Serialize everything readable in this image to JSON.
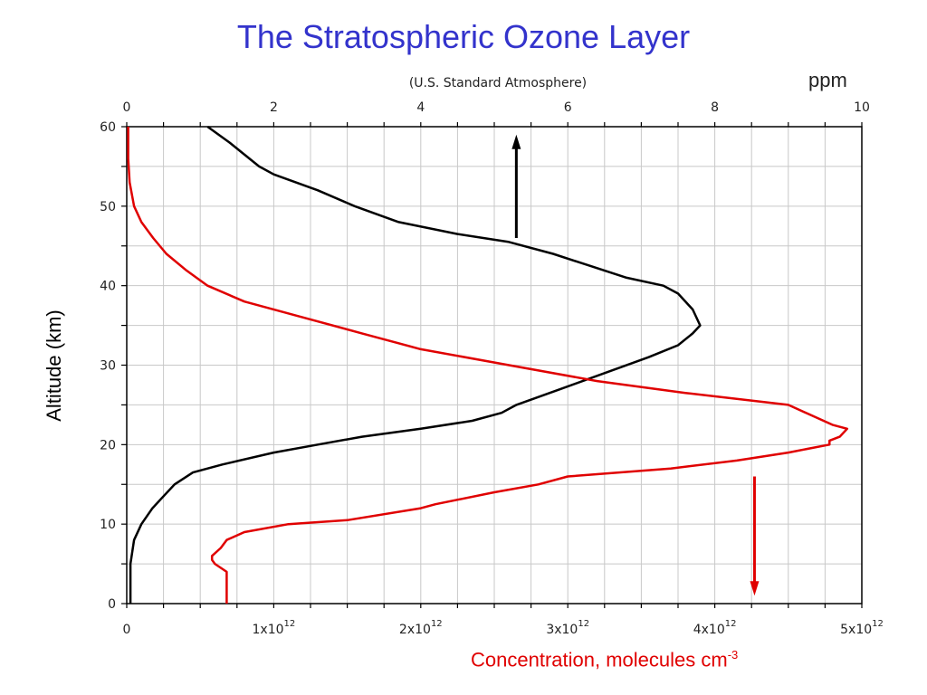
{
  "chart_data": {
    "type": "line",
    "title": "The Stratospheric Ozone Layer",
    "subtitle": "(U.S. Standard Atmosphere)",
    "top_axis_label": "ppm",
    "ylabel": "Altitude (km)",
    "xlabel_text": "Concentration, molecules cm",
    "xlabel_sup": "-3",
    "ylim": [
      0,
      60
    ],
    "y_ticks": [
      "0",
      "10",
      "20",
      "30",
      "40",
      "50",
      "60"
    ],
    "top_xlim": [
      0,
      10
    ],
    "top_ticks": [
      "0",
      "2",
      "4",
      "6",
      "8",
      "10"
    ],
    "bottom_xlim": [
      0,
      5000000000000.0
    ],
    "bottom_ticks": [
      {
        "base": "0",
        "exp": ""
      },
      {
        "base": "1x10",
        "exp": "12"
      },
      {
        "base": "2x10",
        "exp": "12"
      },
      {
        "base": "3x10",
        "exp": "12"
      },
      {
        "base": "4x10",
        "exp": "12"
      },
      {
        "base": "5x10",
        "exp": "12"
      }
    ],
    "grid": true,
    "series": [
      {
        "axis": "top",
        "color": "#000000",
        "points": [
          [
            0.05,
            0
          ],
          [
            0.05,
            5
          ],
          [
            0.1,
            8
          ],
          [
            0.2,
            10
          ],
          [
            0.35,
            12
          ],
          [
            0.45,
            13
          ],
          [
            0.65,
            15
          ],
          [
            0.9,
            16.5
          ],
          [
            1.3,
            17.5
          ],
          [
            2.0,
            19
          ],
          [
            2.6,
            20
          ],
          [
            3.2,
            21
          ],
          [
            4.0,
            22
          ],
          [
            4.7,
            23
          ],
          [
            5.1,
            24
          ],
          [
            5.3,
            25
          ],
          [
            5.9,
            27
          ],
          [
            6.5,
            29
          ],
          [
            7.1,
            31
          ],
          [
            7.5,
            32.5
          ],
          [
            7.7,
            34
          ],
          [
            7.8,
            35
          ],
          [
            7.7,
            37
          ],
          [
            7.5,
            39
          ],
          [
            7.3,
            40
          ],
          [
            6.8,
            41
          ],
          [
            6.3,
            42.5
          ],
          [
            5.8,
            44
          ],
          [
            5.2,
            45.5
          ],
          [
            4.5,
            46.5
          ],
          [
            3.7,
            48
          ],
          [
            3.1,
            50
          ],
          [
            2.6,
            52
          ],
          [
            2.0,
            54
          ],
          [
            1.8,
            55
          ],
          [
            1.4,
            58
          ],
          [
            1.1,
            60
          ]
        ]
      },
      {
        "axis": "bottom",
        "color": "#e00000",
        "points": [
          [
            680000000000.0,
            0
          ],
          [
            680000000000.0,
            4
          ],
          [
            600000000000.0,
            5
          ],
          [
            580000000000.0,
            5.5
          ],
          [
            580000000000.0,
            6
          ],
          [
            640000000000.0,
            7
          ],
          [
            680000000000.0,
            8
          ],
          [
            800000000000.0,
            9
          ],
          [
            1100000000000.0,
            10
          ],
          [
            1500000000000.0,
            10.5
          ],
          [
            2000000000000.0,
            12
          ],
          [
            2100000000000.0,
            12.5
          ],
          [
            2500000000000.0,
            14
          ],
          [
            2800000000000.0,
            15
          ],
          [
            3000000000000.0,
            16
          ],
          [
            3700000000000.0,
            17
          ],
          [
            4150000000000.0,
            18
          ],
          [
            4500000000000.0,
            19
          ],
          [
            4780000000000.0,
            20
          ],
          [
            4780000000000.0,
            20.5
          ],
          [
            4850000000000.0,
            21
          ],
          [
            4900000000000.0,
            22
          ],
          [
            4800000000000.0,
            22.5
          ],
          [
            4500000000000.0,
            25
          ],
          [
            3800000000000.0,
            26.5
          ],
          [
            3200000000000.0,
            28
          ],
          [
            2600000000000.0,
            30
          ],
          [
            2000000000000.0,
            32
          ],
          [
            1600000000000.0,
            34
          ],
          [
            1200000000000.0,
            36
          ],
          [
            800000000000.0,
            38
          ],
          [
            550000000000.0,
            40
          ],
          [
            400000000000.0,
            42
          ],
          [
            270000000000.0,
            44
          ],
          [
            180000000000.0,
            46
          ],
          [
            100000000000.0,
            48
          ],
          [
            50000000000.0,
            50
          ],
          [
            20000000000.0,
            53
          ],
          [
            10000000000.0,
            56
          ],
          [
            10000000000.0,
            60
          ]
        ]
      }
    ],
    "arrows": [
      {
        "color": "#000000",
        "direction": "up",
        "x_data": 2650000000000.0,
        "y_from": 46,
        "y_to": 59
      },
      {
        "color": "#e00000",
        "direction": "down",
        "x_data": 4270000000000.0,
        "y_from": 16,
        "y_to": 1
      }
    ]
  }
}
